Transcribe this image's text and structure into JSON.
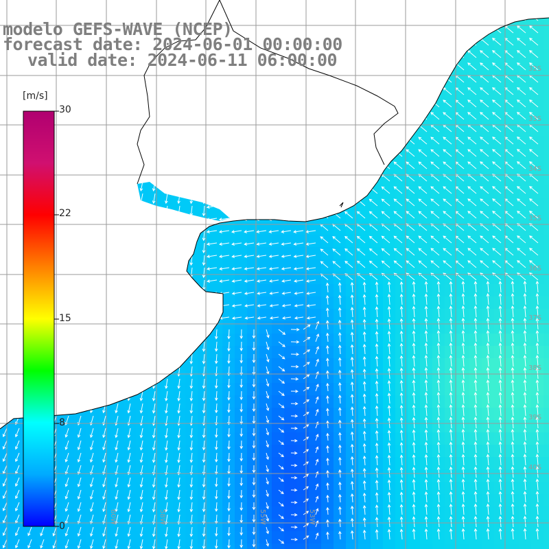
{
  "title": {
    "model": "modelo GEFS-WAVE (NCEP)",
    "forecast": "forecast date: 2024-06-01 00:00:00",
    "valid": "valid date: 2024-06-11 06:00:00"
  },
  "colorbar": {
    "unit": "[m/s]",
    "ticks": [
      "30",
      "22",
      "15",
      "8",
      "0"
    ],
    "tick_values": [
      30,
      22,
      15,
      8,
      0
    ],
    "colors": [
      "#0000ff",
      "#00aaff",
      "#00ffff",
      "#00ff00",
      "#ffff00",
      "#ff8000",
      "#ff0000",
      "#d01070",
      "#b00070"
    ]
  },
  "lat_labels": [
    "32S",
    "33S",
    "34S",
    "35S",
    "36S",
    "37S",
    "38S",
    "39S",
    "40S"
  ],
  "lon_labels": [
    "60W",
    "58W",
    "55W",
    "53W"
  ],
  "field": {
    "variable": "wind speed and direction",
    "value_range": [
      0,
      30
    ],
    "colors": {
      "land": "#ffffff",
      "coast": "#000000",
      "grid": "#9a9a9a",
      "arrow": "#ffffff"
    }
  }
}
